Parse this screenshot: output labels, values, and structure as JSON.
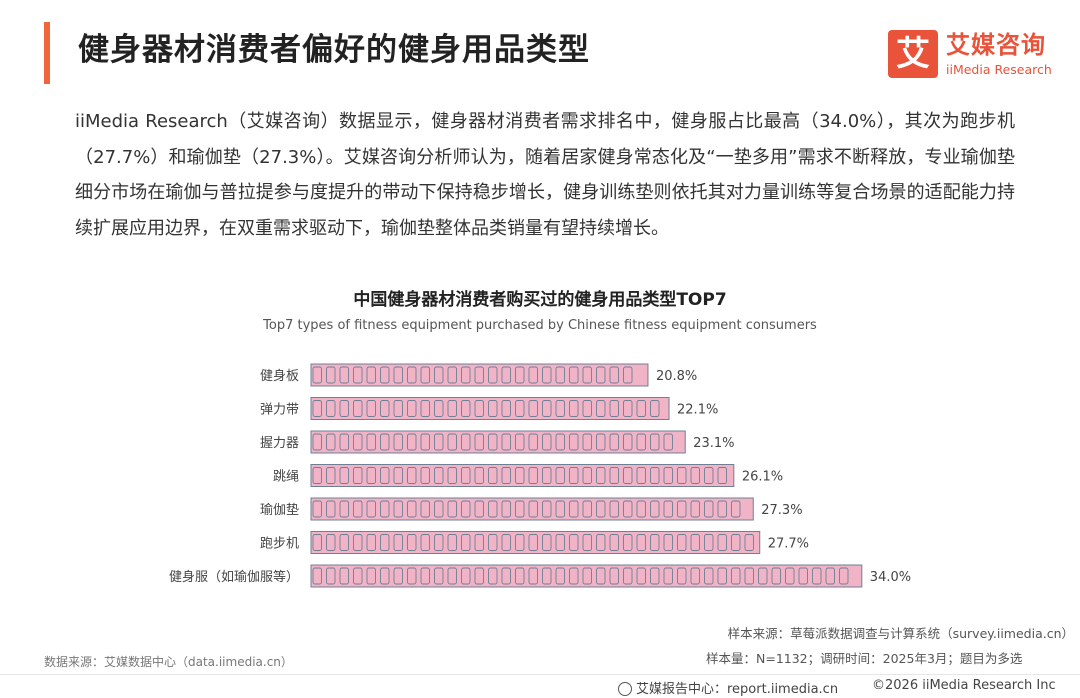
{
  "header": {
    "title": "健身器材消费者偏好的健身用品类型",
    "logo_cn": "艾媒咨询",
    "logo_en": "iiMedia Research",
    "logo_mark": "艾"
  },
  "intro": "iiMedia Research（艾媒咨询）数据显示，健身器材消费者需求排名中，健身服占比最高（34.0%），其次为跑步机（27.7%）和瑜伽垫（27.3%）。艾媒咨询分析师认为，随着居家健身常态化及“一垫多用”需求不断释放，专业瑜伽垫细分市场在瑜伽与普拉提参与度提升的带动下保持稳步增长，健身训练垫则依托其对力量训练等复合场景的适配能力持续扩展应用边界，在双重需求驱动下，瑜伽垫整体品类销量有望持续增长。",
  "chart_data": {
    "type": "bar",
    "orientation": "horizontal",
    "title": "中国健身器材消费者购买过的健身用品类型TOP7",
    "subtitle": "Top7 types of fitness equipment purchased by Chinese fitness equipment consumers",
    "categories": [
      "健身板",
      "弹力带",
      "握力器",
      "跳绳",
      "瑜伽垫",
      "跑步机",
      "健身服（如瑜伽服等）"
    ],
    "values": [
      20.8,
      22.1,
      23.1,
      26.1,
      27.3,
      27.7,
      34.0
    ],
    "value_labels": [
      "20.8%",
      "22.1%",
      "23.1%",
      "26.1%",
      "27.3%",
      "27.7%",
      "34.0%"
    ],
    "unit": "%",
    "bar_fill": "#f1b3c6",
    "bar_pattern_stroke": "#6f7f96",
    "grid": false,
    "legend": "none"
  },
  "notes": {
    "data_source": "数据来源：艾媒数据中心（data.iimedia.cn）",
    "sample_source": "样本来源：草莓派数据调查与计算系统（survey.iimedia.cn）",
    "sample_size": "样本量：N=1132；调研时间：2025年3月；题目为多选"
  },
  "footer": {
    "center": "艾媒报告中心：report.iimedia.cn",
    "right": "©2026  iiMedia Research  Inc"
  },
  "colors": {
    "accent": "#f2643a",
    "brand": "#e8533a"
  }
}
